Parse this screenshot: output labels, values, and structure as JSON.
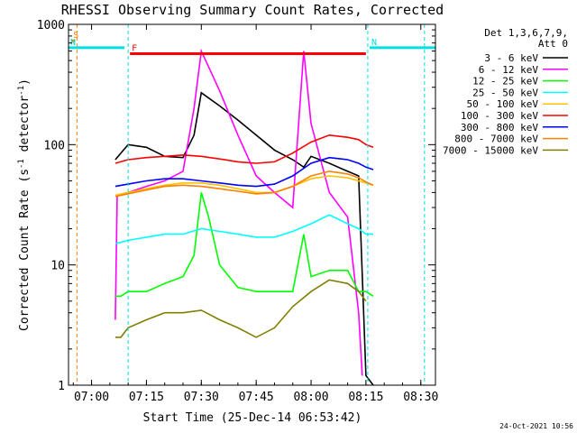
{
  "chart_data": {
    "type": "line",
    "title": "RHESSI Observing Summary Count Rates, Corrected",
    "xlabel": "Start Time (25-Dec-14 06:53:42)",
    "ylabel": "Corrected Count Rate (s",
    "ylabel_sup1": "-1",
    "ylabel_mid": " detector",
    "ylabel_sup2": "-1",
    "ylabel_end": ")",
    "yscale": "log",
    "ylim": [
      1,
      1000
    ],
    "xlim": [
      "06:53:42",
      "08:34:00"
    ],
    "x_ticks": [
      "07:00",
      "07:15",
      "07:30",
      "07:45",
      "08:00",
      "08:15",
      "08:30"
    ],
    "y_ticks": [
      "1",
      "10",
      "100",
      "1000"
    ],
    "timestamp": "24-Oct-2021 10:56",
    "legend": {
      "header_line1": "Det 1,3,6,7,9,",
      "header_line2": "Att 0",
      "placement": "right"
    },
    "flags": [
      {
        "label": "S",
        "color": "#ff8000",
        "start": "06:54:30",
        "end": "06:55:30",
        "level": 730
      },
      {
        "label": "N",
        "color": "#00e0e0",
        "start": "06:53:42",
        "end": "07:09:00",
        "level": 640
      },
      {
        "label": "N",
        "color": "#00e0e0",
        "start": "08:16:00",
        "end": "08:34:00",
        "level": 640
      },
      {
        "label": "F",
        "color": "#ff0000",
        "start": "07:10:30",
        "end": "08:15:00",
        "level": 570
      }
    ],
    "flag_markers": [
      {
        "time": "06:56:00",
        "color": "#ff8000"
      },
      {
        "time": "07:10:00",
        "color": "#00e0e0"
      },
      {
        "time": "08:15:30",
        "color": "#00e0e0"
      },
      {
        "time": "08:31:00",
        "color": "#00e0e0"
      }
    ],
    "series": [
      {
        "name": "3 - 6 keV",
        "color": "#000000",
        "x": [
          "07:06:30",
          "07:10",
          "07:15",
          "07:20",
          "07:25",
          "07:28",
          "07:30",
          "07:35",
          "07:40",
          "07:45",
          "07:50",
          "07:55",
          "07:58",
          "08:00",
          "08:05",
          "08:10",
          "08:13",
          "08:15",
          "08:17"
        ],
        "values": [
          75,
          100,
          95,
          80,
          78,
          120,
          270,
          210,
          160,
          120,
          90,
          75,
          65,
          80,
          70,
          60,
          55,
          1.2,
          1.0
        ]
      },
      {
        "name": "6 - 12 keV",
        "color": "#ff00ff",
        "x": [
          "07:06:30",
          "07:07",
          "07:10",
          "07:15",
          "07:20",
          "07:25",
          "07:28",
          "07:30",
          "07:35",
          "07:40",
          "07:45",
          "07:50",
          "07:55",
          "07:58",
          "08:00",
          "08:05",
          "08:10",
          "08:13",
          "08:14"
        ],
        "values": [
          3.5,
          38,
          40,
          45,
          50,
          60,
          200,
          600,
          280,
          120,
          55,
          40,
          30,
          600,
          150,
          40,
          25,
          4,
          1.2
        ]
      },
      {
        "name": "12 - 25 keV",
        "color": "#00ff00",
        "x": [
          "07:06:30",
          "07:08",
          "07:10",
          "07:15",
          "07:20",
          "07:25",
          "07:28",
          "07:30",
          "07:32",
          "07:35",
          "07:40",
          "07:45",
          "07:50",
          "07:55",
          "07:58",
          "08:00",
          "08:05",
          "08:10",
          "08:13",
          "08:15",
          "08:17"
        ],
        "values": [
          5.5,
          5.5,
          6,
          6,
          7,
          8,
          12,
          40,
          25,
          10,
          6.5,
          6,
          6,
          6,
          18,
          8,
          9,
          9,
          6,
          6,
          5.5
        ]
      },
      {
        "name": "25 - 50 keV",
        "color": "#00ffff",
        "x": [
          "07:06:30",
          "07:10",
          "07:15",
          "07:20",
          "07:25",
          "07:30",
          "07:35",
          "07:40",
          "07:45",
          "07:50",
          "07:55",
          "08:00",
          "08:05",
          "08:10",
          "08:13",
          "08:15",
          "08:17"
        ],
        "values": [
          15,
          16,
          17,
          18,
          18,
          20,
          19,
          18,
          17,
          17,
          19,
          22,
          26,
          22,
          20,
          18,
          18
        ]
      },
      {
        "name": "50 - 100 keV",
        "color": "#ffc000",
        "x": [
          "07:06:30",
          "07:10",
          "07:15",
          "07:20",
          "07:25",
          "07:30",
          "07:35",
          "07:40",
          "07:45",
          "07:50",
          "07:55",
          "08:00",
          "08:05",
          "08:10",
          "08:13",
          "08:15",
          "08:17"
        ],
        "values": [
          38,
          40,
          43,
          46,
          48,
          48,
          46,
          43,
          40,
          40,
          45,
          52,
          55,
          53,
          50,
          48,
          46
        ]
      },
      {
        "name": "100 - 300 keV",
        "color": "#ff0000",
        "x": [
          "07:06:30",
          "07:10",
          "07:15",
          "07:20",
          "07:25",
          "07:30",
          "07:35",
          "07:40",
          "07:45",
          "07:50",
          "07:55",
          "08:00",
          "08:05",
          "08:10",
          "08:13",
          "08:15",
          "08:17"
        ],
        "values": [
          70,
          75,
          78,
          80,
          82,
          80,
          76,
          72,
          70,
          72,
          85,
          105,
          120,
          115,
          110,
          100,
          95
        ]
      },
      {
        "name": "300 - 800 keV",
        "color": "#0000ff",
        "x": [
          "07:06:30",
          "07:10",
          "07:15",
          "07:20",
          "07:25",
          "07:30",
          "07:35",
          "07:40",
          "07:45",
          "07:50",
          "07:55",
          "08:00",
          "08:05",
          "08:10",
          "08:13",
          "08:15",
          "08:17"
        ],
        "values": [
          45,
          47,
          50,
          52,
          52,
          50,
          48,
          46,
          45,
          47,
          55,
          70,
          78,
          75,
          70,
          65,
          62
        ]
      },
      {
        "name": "800 - 7000 keV",
        "color": "#ff8000",
        "x": [
          "07:06:30",
          "07:10",
          "07:15",
          "07:20",
          "07:25",
          "07:30",
          "07:35",
          "07:40",
          "07:45",
          "07:50",
          "07:55",
          "08:00",
          "08:05",
          "08:10",
          "08:13",
          "08:15",
          "08:17"
        ],
        "values": [
          37,
          39,
          42,
          45,
          46,
          45,
          43,
          41,
          39,
          40,
          45,
          55,
          60,
          57,
          53,
          49,
          46
        ]
      },
      {
        "name": "7000 - 15000 keV",
        "color": "#808000",
        "x": [
          "07:06:30",
          "07:08",
          "07:10",
          "07:15",
          "07:20",
          "07:25",
          "07:30",
          "07:35",
          "07:40",
          "07:45",
          "07:50",
          "07:55",
          "08:00",
          "08:05",
          "08:10",
          "08:13",
          "08:15"
        ],
        "values": [
          2.5,
          2.5,
          3,
          3.5,
          4,
          4,
          4.2,
          3.5,
          3,
          2.5,
          3,
          4.5,
          6,
          7.5,
          7,
          6,
          5
        ]
      }
    ]
  }
}
